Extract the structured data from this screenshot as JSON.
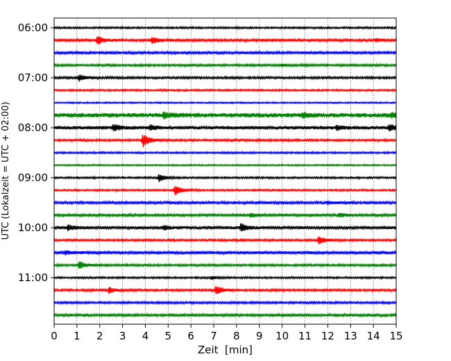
{
  "chart_data": {
    "type": "line",
    "title": "",
    "xlabel": "Zeit  [min]",
    "ylabel": "UTC (Lokalzeit = UTC + 02:00)",
    "xlim": [
      0,
      15
    ],
    "x_ticks": [
      "0",
      "1",
      "2",
      "3",
      "4",
      "5",
      "6",
      "7",
      "8",
      "9",
      "10",
      "11",
      "12",
      "13",
      "14",
      "15"
    ],
    "y_ticks": [
      "06:00",
      "07:00",
      "08:00",
      "09:00",
      "10:00",
      "11:00"
    ],
    "grid": "vertical dotted",
    "trace_minutes": 15,
    "trace_colors": [
      "#000000",
      "#ff0000",
      "#0000ff",
      "#008000"
    ],
    "traces": [
      {
        "start": "06:00",
        "noise": 0.25,
        "events": []
      },
      {
        "start": "06:15",
        "noise": 0.35,
        "events": [
          {
            "t": 1.9,
            "amp": 1.4
          },
          {
            "t": 4.3,
            "amp": 1.1
          },
          {
            "t": 14.1,
            "amp": 0.5
          }
        ]
      },
      {
        "start": "06:30",
        "noise": 0.35,
        "events": []
      },
      {
        "start": "06:45",
        "noise": 0.3,
        "events": [
          {
            "t": 10.0,
            "amp": 0.35
          }
        ]
      },
      {
        "start": "07:00",
        "noise": 0.3,
        "events": [
          {
            "t": 1.1,
            "amp": 1.1
          }
        ]
      },
      {
        "start": "07:15",
        "noise": 0.25,
        "events": []
      },
      {
        "start": "07:30",
        "noise": 0.2,
        "events": []
      },
      {
        "start": "07:45",
        "noise": 0.6,
        "events": [
          {
            "t": 4.8,
            "amp": 0.9
          },
          {
            "t": 10.9,
            "amp": 0.7
          },
          {
            "t": 14.8,
            "amp": 0.7
          }
        ]
      },
      {
        "start": "08:00",
        "noise": 0.45,
        "events": [
          {
            "t": 2.6,
            "amp": 1.2
          },
          {
            "t": 4.2,
            "amp": 0.8
          },
          {
            "t": 12.4,
            "amp": 0.7
          },
          {
            "t": 14.7,
            "amp": 1.0
          }
        ]
      },
      {
        "start": "08:15",
        "noise": 0.3,
        "events": [
          {
            "t": 3.9,
            "amp": 2.2
          }
        ]
      },
      {
        "start": "08:30",
        "noise": 0.25,
        "events": []
      },
      {
        "start": "08:45",
        "noise": 0.2,
        "events": []
      },
      {
        "start": "09:00",
        "noise": 0.25,
        "events": [
          {
            "t": 4.6,
            "amp": 1.3
          }
        ]
      },
      {
        "start": "09:15",
        "noise": 0.25,
        "events": [
          {
            "t": 5.3,
            "amp": 1.8
          }
        ]
      },
      {
        "start": "09:30",
        "noise": 0.35,
        "events": [
          {
            "t": 12.0,
            "amp": 0.45
          }
        ]
      },
      {
        "start": "09:45",
        "noise": 0.35,
        "events": [
          {
            "t": 8.6,
            "amp": 0.6
          },
          {
            "t": 12.5,
            "amp": 0.6
          }
        ]
      },
      {
        "start": "10:00",
        "noise": 0.4,
        "events": [
          {
            "t": 0.6,
            "amp": 0.8
          },
          {
            "t": 4.8,
            "amp": 0.7
          },
          {
            "t": 8.2,
            "amp": 1.4
          }
        ]
      },
      {
        "start": "10:15",
        "noise": 0.3,
        "events": [
          {
            "t": 11.6,
            "amp": 1.3
          }
        ]
      },
      {
        "start": "10:30",
        "noise": 0.4,
        "events": [
          {
            "t": 0.5,
            "amp": 0.6
          }
        ]
      },
      {
        "start": "10:45",
        "noise": 0.3,
        "events": [
          {
            "t": 1.1,
            "amp": 1.3
          }
        ]
      },
      {
        "start": "11:00",
        "noise": 0.25,
        "events": [
          {
            "t": 6.9,
            "amp": 0.5
          }
        ]
      },
      {
        "start": "11:15",
        "noise": 0.3,
        "events": [
          {
            "t": 2.4,
            "amp": 1.0
          },
          {
            "t": 7.1,
            "amp": 1.6
          }
        ]
      },
      {
        "start": "11:30",
        "noise": 0.3,
        "events": []
      },
      {
        "start": "11:45",
        "noise": 0.35,
        "events": []
      }
    ]
  }
}
